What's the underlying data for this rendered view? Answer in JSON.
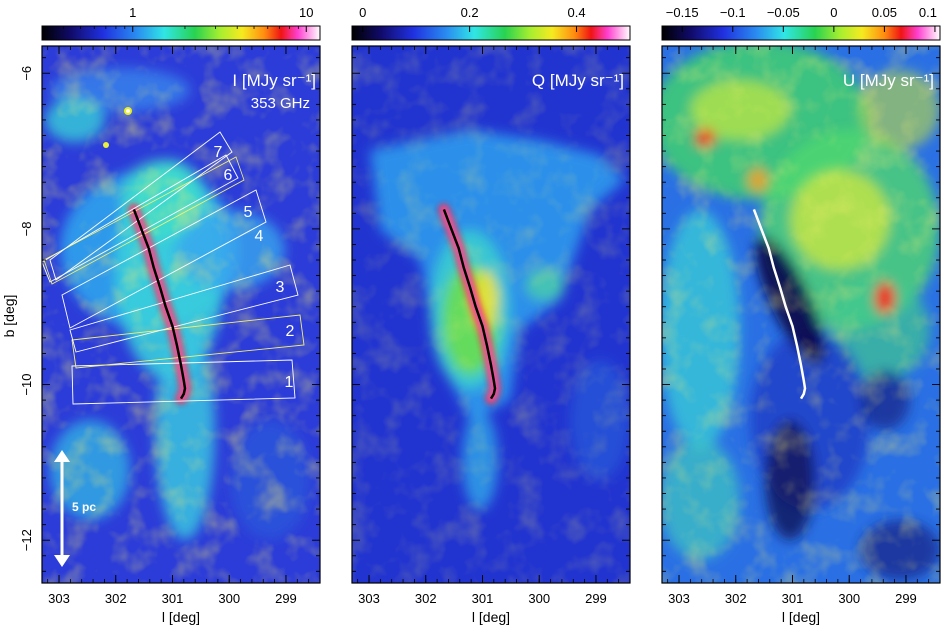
{
  "chart_data": [
    {
      "type": "heatmap",
      "title": "I [MJy sr⁻¹]",
      "subtitle": "353 GHz",
      "xlabel": "l [deg]",
      "ylabel": "b [deg]",
      "xlim": [
        303.3,
        298.4
      ],
      "ylim": [
        -12.55,
        -5.65
      ],
      "x_ticks": [
        "303",
        "302",
        "301",
        "300",
        "299"
      ],
      "y_ticks": [
        "−6",
        "−8",
        "−10",
        "−12"
      ],
      "colorbar": {
        "scale": "log",
        "ticks": [
          "1",
          "10"
        ],
        "tick_values": [
          1,
          10
        ],
        "range": [
          0.3,
          12
        ]
      },
      "scale_bar_label": "5 pc",
      "box_labels": [
        "7",
        "6",
        "5",
        "4",
        "3",
        "2",
        "1"
      ],
      "spine_l": [
        301.68,
        301.55,
        301.42,
        301.33,
        301.22,
        301.12,
        301.0,
        300.92,
        300.85,
        300.8,
        300.78,
        300.8,
        300.85
      ],
      "spine_b": [
        -7.75,
        -8.0,
        -8.25,
        -8.5,
        -8.75,
        -9.0,
        -9.25,
        -9.5,
        -9.75,
        -9.95,
        -10.05,
        -10.12,
        -10.18
      ]
    },
    {
      "type": "heatmap",
      "title": "Q [MJy sr⁻¹]",
      "xlabel": "l [deg]",
      "xlim": [
        303.3,
        298.4
      ],
      "ylim": [
        -12.55,
        -5.65
      ],
      "x_ticks": [
        "303",
        "302",
        "301",
        "300",
        "299"
      ],
      "colorbar": {
        "scale": "linear",
        "ticks": [
          "0",
          "0.2",
          "0.4"
        ],
        "tick_values": [
          0,
          0.2,
          0.4
        ],
        "range": [
          -0.02,
          0.5
        ]
      },
      "spine_l": [
        301.68,
        301.55,
        301.42,
        301.33,
        301.22,
        301.12,
        301.0,
        300.92,
        300.85,
        300.8,
        300.78,
        300.8,
        300.85
      ],
      "spine_b": [
        -7.75,
        -8.0,
        -8.25,
        -8.5,
        -8.75,
        -9.0,
        -9.25,
        -9.5,
        -9.75,
        -9.95,
        -10.05,
        -10.12,
        -10.18
      ]
    },
    {
      "type": "heatmap",
      "title": "U [MJy sr⁻¹]",
      "xlabel": "l [deg]",
      "xlim": [
        303.3,
        298.4
      ],
      "ylim": [
        -12.55,
        -5.65
      ],
      "x_ticks": [
        "303",
        "302",
        "301",
        "300",
        "299"
      ],
      "colorbar": {
        "scale": "linear",
        "ticks": [
          "−0.15",
          "−0.1",
          "−0.05",
          "0",
          "0.05",
          "0.1"
        ],
        "tick_values": [
          -0.15,
          -0.1,
          -0.05,
          0,
          0.05,
          0.1
        ],
        "range": [
          -0.17,
          0.105
        ]
      },
      "spine_l": [
        301.68,
        301.55,
        301.42,
        301.33,
        301.22,
        301.12,
        301.0,
        300.92,
        300.85,
        300.8,
        300.78,
        300.8,
        300.85
      ],
      "spine_b": [
        -7.75,
        -8.0,
        -8.25,
        -8.5,
        -8.75,
        -9.0,
        -9.25,
        -9.5,
        -9.75,
        -9.95,
        -10.05,
        -10.12,
        -10.18
      ]
    }
  ]
}
